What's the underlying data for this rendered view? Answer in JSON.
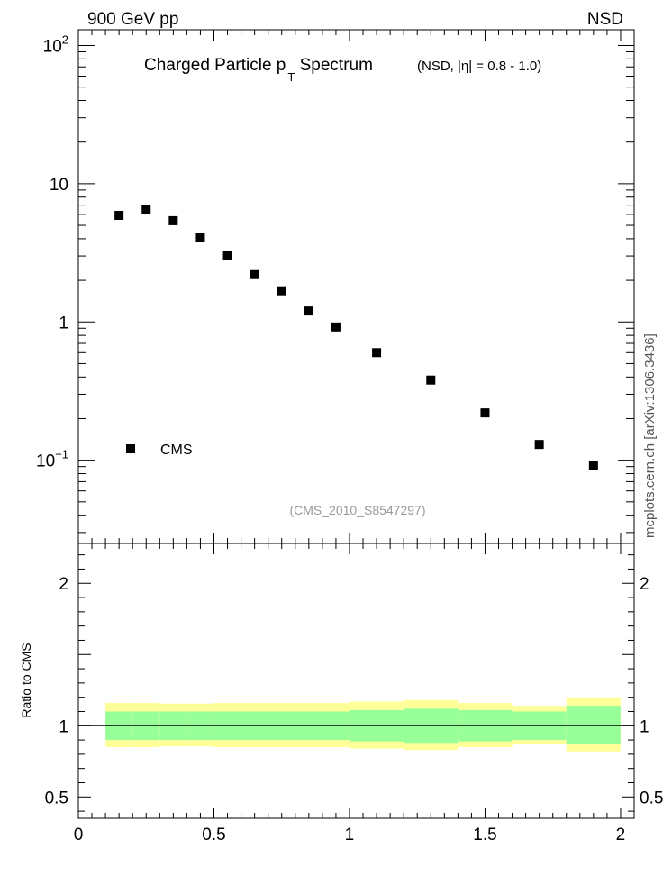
{
  "header": {
    "left": "900 GeV pp",
    "right": "NSD",
    "side": "mcplots.cern.ch [arXiv:1306.3436]"
  },
  "chart_data": [
    {
      "type": "scatter",
      "title_main": "Charged Particle p",
      "title_sub": "T",
      "title_rest": " Spectrum",
      "title_note": "(NSD, |η| = 0.8 - 1.0)",
      "watermark": "(CMS_2010_S8547297)",
      "yscale": "log",
      "ylim": [
        0.025,
        130
      ],
      "xlim": [
        0,
        2.05
      ],
      "y_ticklabels": [
        {
          "value": 100,
          "base": "10",
          "exp": "2"
        },
        {
          "value": 10,
          "base": "10",
          "exp": ""
        },
        {
          "value": 1,
          "base": "1",
          "exp": ""
        },
        {
          "value": 0.1,
          "base": "10",
          "exp": "−1"
        }
      ],
      "legend": {
        "placement": "lower-left",
        "entries": [
          "CMS"
        ]
      },
      "series": [
        {
          "name": "CMS",
          "color": "#000000",
          "marker": "square",
          "x": [
            0.15,
            0.25,
            0.35,
            0.45,
            0.55,
            0.65,
            0.75,
            0.85,
            0.95,
            1.1,
            1.3,
            1.5,
            1.7,
            1.9
          ],
          "y": [
            5.9,
            6.5,
            5.4,
            4.1,
            3.05,
            2.2,
            1.68,
            1.2,
            0.92,
            0.6,
            0.38,
            0.22,
            0.13,
            0.092
          ]
        }
      ]
    },
    {
      "type": "area",
      "ylabel": "Ratio to CMS",
      "xlim": [
        0,
        2.05
      ],
      "ylim": [
        0.35,
        2.28
      ],
      "x_ticklabels": [
        "0",
        "0.5",
        "1",
        "1.5",
        "2"
      ],
      "x_tickvalues": [
        0,
        0.5,
        1,
        1.5,
        2
      ],
      "y_ticklabels": [
        "0.5",
        "1",
        "2"
      ],
      "y_tickvalues": [
        0.5,
        1,
        2
      ],
      "reference_line": 1,
      "bins": [
        {
          "x0": 0.1,
          "x1": 0.2,
          "stat_lo": 0.9,
          "stat_hi": 1.1,
          "tot_lo": 0.85,
          "tot_hi": 1.16
        },
        {
          "x0": 0.2,
          "x1": 0.3,
          "stat_lo": 0.9,
          "stat_hi": 1.1,
          "tot_lo": 0.85,
          "tot_hi": 1.16
        },
        {
          "x0": 0.3,
          "x1": 0.4,
          "stat_lo": 0.9,
          "stat_hi": 1.1,
          "tot_lo": 0.855,
          "tot_hi": 1.155
        },
        {
          "x0": 0.4,
          "x1": 0.5,
          "stat_lo": 0.9,
          "stat_hi": 1.1,
          "tot_lo": 0.855,
          "tot_hi": 1.155
        },
        {
          "x0": 0.5,
          "x1": 0.6,
          "stat_lo": 0.9,
          "stat_hi": 1.1,
          "tot_lo": 0.85,
          "tot_hi": 1.16
        },
        {
          "x0": 0.6,
          "x1": 0.7,
          "stat_lo": 0.9,
          "stat_hi": 1.1,
          "tot_lo": 0.85,
          "tot_hi": 1.16
        },
        {
          "x0": 0.7,
          "x1": 0.8,
          "stat_lo": 0.9,
          "stat_hi": 1.1,
          "tot_lo": 0.85,
          "tot_hi": 1.16
        },
        {
          "x0": 0.8,
          "x1": 0.9,
          "stat_lo": 0.9,
          "stat_hi": 1.1,
          "tot_lo": 0.85,
          "tot_hi": 1.16
        },
        {
          "x0": 0.9,
          "x1": 1.0,
          "stat_lo": 0.9,
          "stat_hi": 1.1,
          "tot_lo": 0.85,
          "tot_hi": 1.16
        },
        {
          "x0": 1.0,
          "x1": 1.2,
          "stat_lo": 0.89,
          "stat_hi": 1.11,
          "tot_lo": 0.84,
          "tot_hi": 1.17
        },
        {
          "x0": 1.2,
          "x1": 1.4,
          "stat_lo": 0.88,
          "stat_hi": 1.12,
          "tot_lo": 0.83,
          "tot_hi": 1.18
        },
        {
          "x0": 1.4,
          "x1": 1.6,
          "stat_lo": 0.89,
          "stat_hi": 1.11,
          "tot_lo": 0.85,
          "tot_hi": 1.16
        },
        {
          "x0": 1.6,
          "x1": 1.8,
          "stat_lo": 0.9,
          "stat_hi": 1.1,
          "tot_lo": 0.87,
          "tot_hi": 1.14
        },
        {
          "x0": 1.8,
          "x1": 2.0,
          "stat_lo": 0.87,
          "stat_hi": 1.14,
          "tot_lo": 0.82,
          "tot_hi": 1.2
        }
      ],
      "colors": {
        "stat": "#99ff99",
        "total": "#ffff99"
      }
    }
  ]
}
